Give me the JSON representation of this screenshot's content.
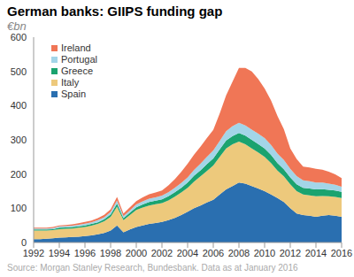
{
  "chart_data": {
    "type": "area",
    "title": "German banks: GIIPS funding gap",
    "subtitle": "€bn",
    "source": "Source: Morgan Stanley Research, Bundesbank. Data as at January 2016",
    "stacked": true,
    "grid": false,
    "legend": "upper left",
    "x": [
      1992,
      1992.5,
      1993,
      1993.5,
      1994,
      1994.5,
      1995,
      1995.5,
      1996,
      1996.5,
      1997,
      1997.5,
      1998,
      1998.5,
      1999,
      1999.5,
      2000,
      2000.5,
      2001,
      2001.5,
      2002,
      2002.5,
      2003,
      2003.5,
      2004,
      2004.5,
      2005,
      2005.5,
      2006,
      2006.5,
      2007,
      2007.5,
      2008,
      2008.5,
      2009,
      2009.5,
      2010,
      2010.5,
      2011,
      2011.5,
      2012,
      2012.5,
      2013,
      2013.5,
      2014,
      2014.5,
      2015,
      2015.5,
      2016
    ],
    "xlim": [
      1992,
      2016
    ],
    "xticks": [
      1992,
      1994,
      1996,
      1998,
      2000,
      2002,
      2004,
      2006,
      2008,
      2010,
      2012,
      2014,
      2016
    ],
    "ylim": [
      0,
      600
    ],
    "yticks": [
      0,
      100,
      200,
      300,
      400,
      500,
      600
    ],
    "series": [
      {
        "name": "Spain",
        "color": "#2a6fb0",
        "values": [
          10,
          10,
          11,
          12,
          14,
          15,
          16,
          17,
          19,
          21,
          24,
          28,
          35,
          50,
          30,
          38,
          45,
          50,
          54,
          57,
          60,
          65,
          72,
          80,
          90,
          100,
          108,
          117,
          125,
          140,
          155,
          165,
          175,
          172,
          165,
          158,
          150,
          140,
          130,
          118,
          100,
          85,
          80,
          78,
          75,
          78,
          80,
          78,
          75
        ]
      },
      {
        "name": "Italy",
        "color": "#edc97c",
        "values": [
          25,
          25,
          24,
          24,
          25,
          25,
          25,
          26,
          26,
          28,
          30,
          34,
          40,
          55,
          35,
          42,
          50,
          52,
          54,
          55,
          55,
          58,
          62,
          66,
          70,
          78,
          85,
          92,
          100,
          110,
          120,
          122,
          120,
          115,
          110,
          105,
          100,
          92,
          80,
          75,
          70,
          65,
          60,
          60,
          60,
          58,
          55,
          55,
          55
        ]
      },
      {
        "name": "Greece",
        "color": "#1ba36f",
        "values": [
          3,
          3,
          3,
          3,
          4,
          4,
          4,
          4,
          5,
          5,
          5,
          6,
          7,
          9,
          6,
          7,
          8,
          9,
          10,
          10,
          11,
          12,
          13,
          14,
          15,
          17,
          18,
          20,
          21,
          22,
          23,
          24,
          25,
          25,
          25,
          25,
          25,
          24,
          22,
          21,
          20,
          20,
          20,
          20,
          20,
          20,
          19,
          19,
          18
        ]
      },
      {
        "name": "Portugal",
        "color": "#a3d5e8",
        "values": [
          3,
          3,
          3,
          3,
          4,
          4,
          4,
          5,
          5,
          5,
          6,
          6,
          7,
          9,
          6,
          7,
          8,
          9,
          10,
          10,
          11,
          12,
          13,
          14,
          15,
          17,
          19,
          21,
          23,
          25,
          27,
          29,
          30,
          30,
          30,
          30,
          30,
          29,
          28,
          27,
          25,
          24,
          22,
          21,
          20,
          19,
          18,
          17,
          15
        ]
      },
      {
        "name": "Ireland",
        "color": "#f07656",
        "values": [
          2,
          2,
          2,
          3,
          3,
          3,
          4,
          4,
          5,
          5,
          6,
          7,
          8,
          10,
          8,
          9,
          10,
          12,
          13,
          14,
          15,
          20,
          25,
          32,
          40,
          45,
          50,
          55,
          60,
          80,
          105,
          130,
          160,
          168,
          170,
          160,
          145,
          130,
          110,
          90,
          60,
          50,
          40,
          40,
          40,
          38,
          35,
          30,
          25
        ]
      }
    ]
  }
}
